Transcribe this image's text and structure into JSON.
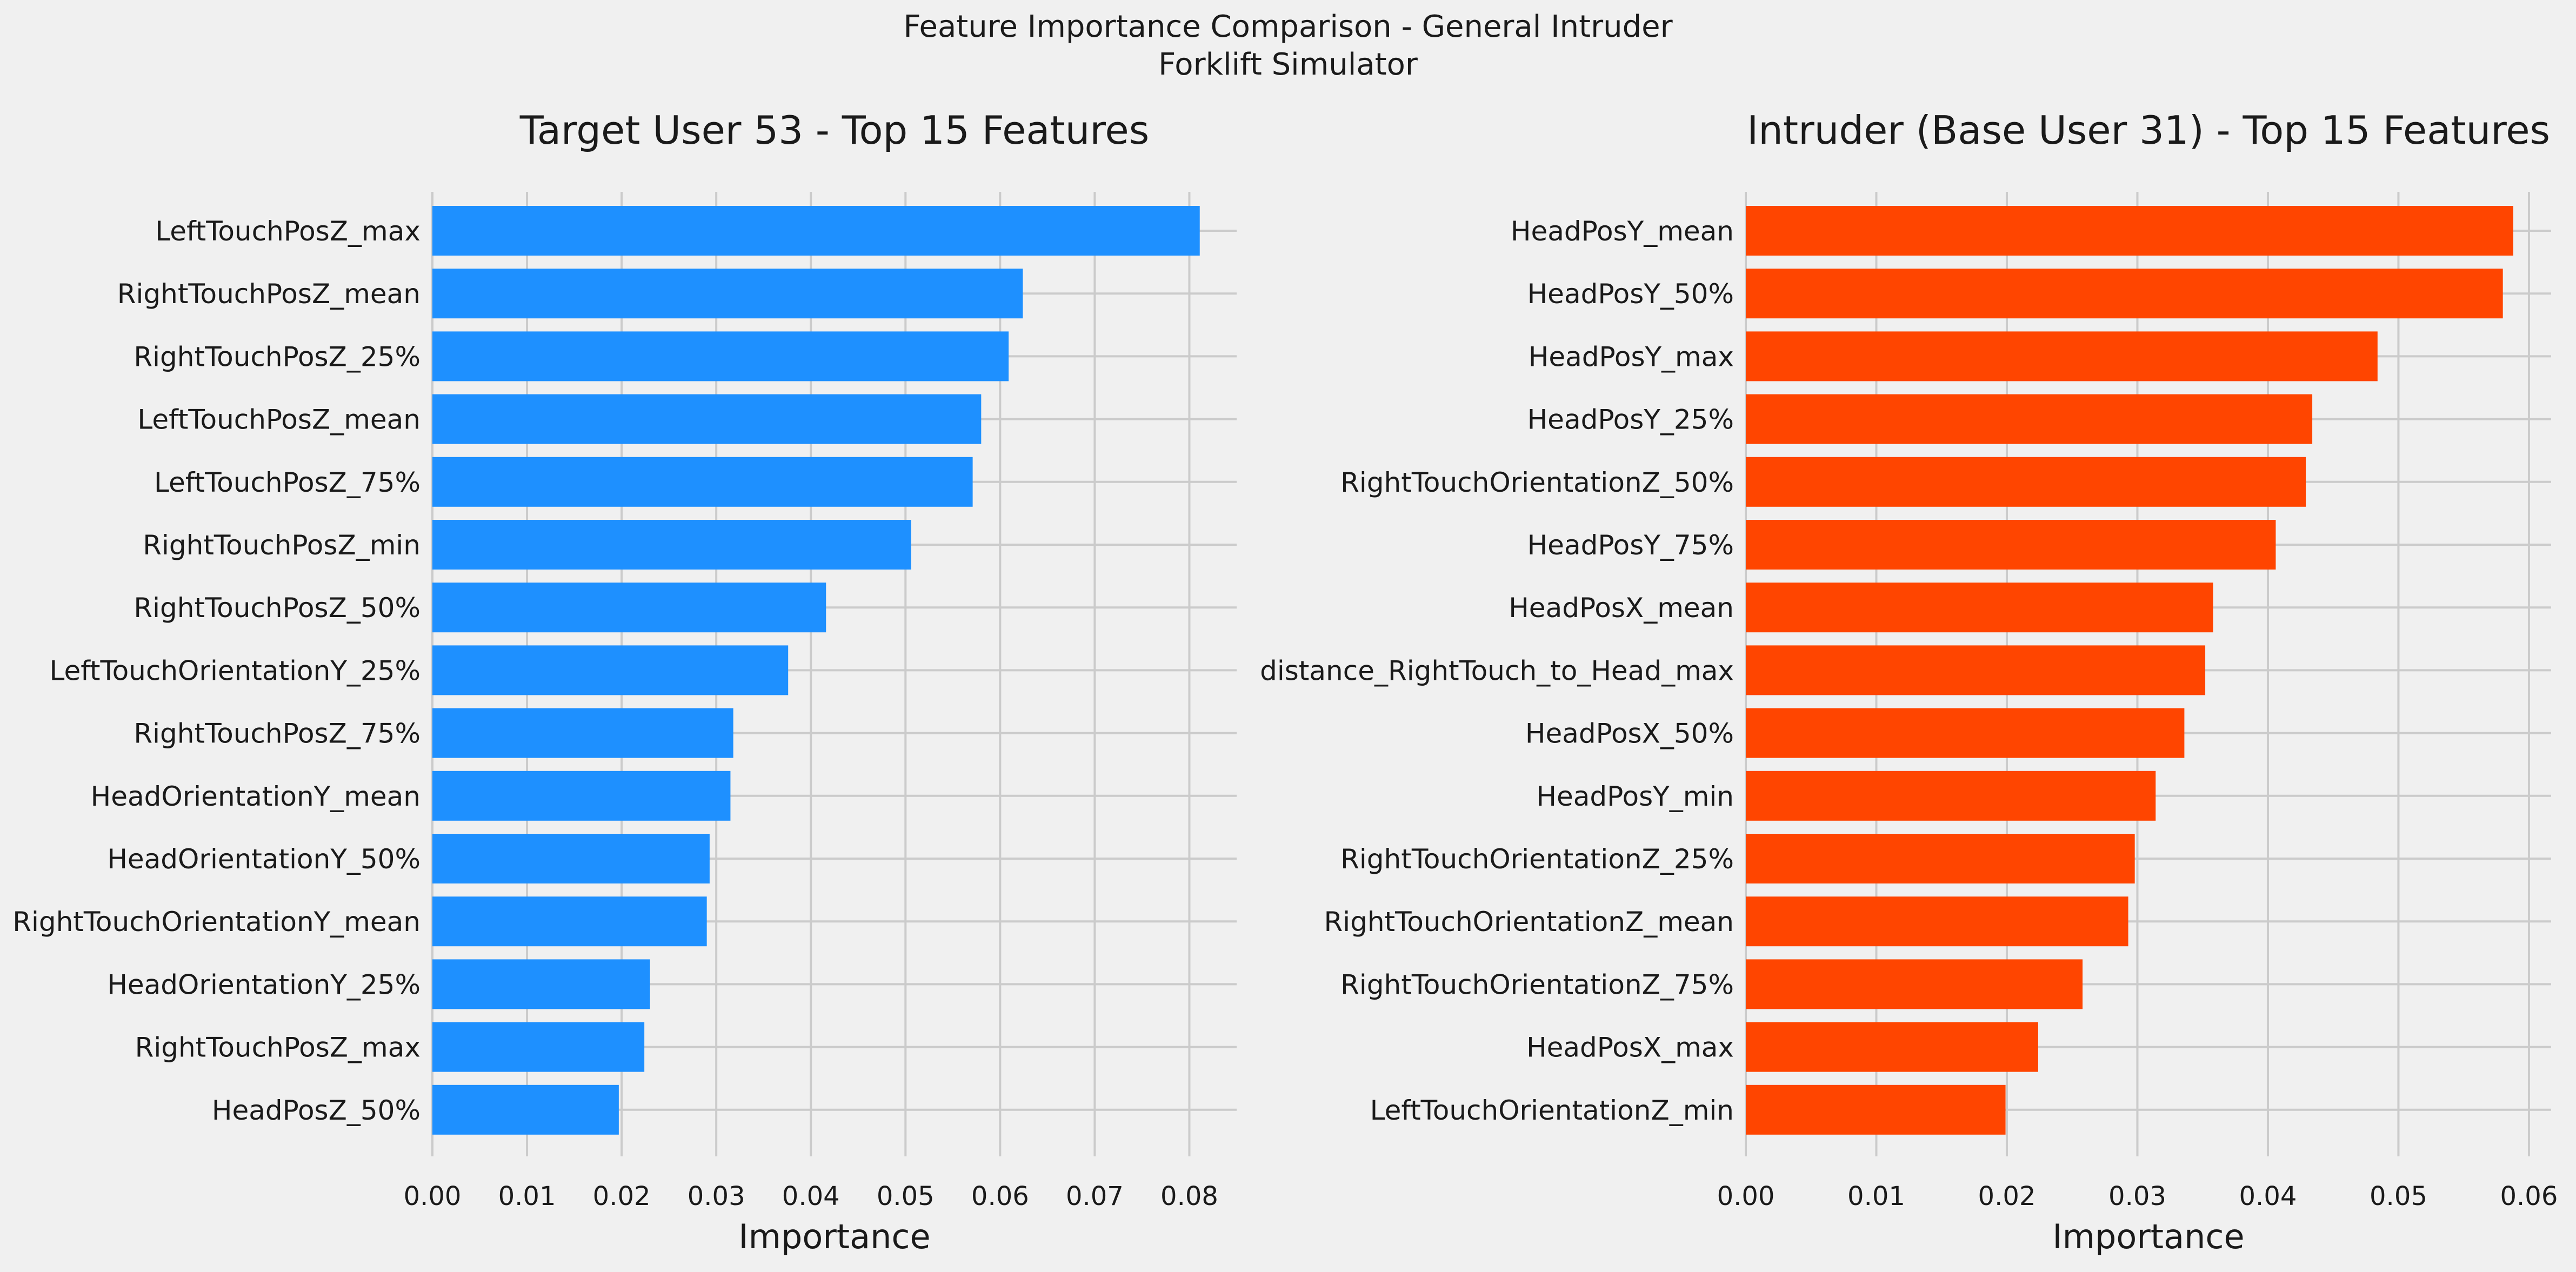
{
  "figure": {
    "suptitle_line1": "Feature Importance Comparison - General Intruder",
    "suptitle_line2": "Forklift Simulator",
    "background": "#f0f0f0",
    "grid_color": "#cbcbcb"
  },
  "chart_data": [
    {
      "type": "bar",
      "orientation": "horizontal",
      "title": "Target User 53 - Top 15 Features",
      "xlabel": "Importance",
      "ylabel": "",
      "grid": true,
      "color": "#1e90ff",
      "xlim": [
        0,
        0.085
      ],
      "xticks": [
        0.0,
        0.01,
        0.02,
        0.03,
        0.04,
        0.05,
        0.06,
        0.07,
        0.08
      ],
      "xtick_labels": [
        "0.00",
        "0.01",
        "0.02",
        "0.03",
        "0.04",
        "0.05",
        "0.06",
        "0.07",
        "0.08"
      ],
      "categories": [
        "LeftTouchPosZ_max",
        "RightTouchPosZ_mean",
        "RightTouchPosZ_25%",
        "LeftTouchPosZ_mean",
        "LeftTouchPosZ_75%",
        "RightTouchPosZ_min",
        "RightTouchPosZ_50%",
        "LeftTouchOrientationY_25%",
        "RightTouchPosZ_75%",
        "HeadOrientationY_mean",
        "HeadOrientationY_50%",
        "RightTouchOrientationY_mean",
        "HeadOrientationY_25%",
        "RightTouchPosZ_max",
        "HeadPosZ_50%"
      ],
      "values": [
        0.0811,
        0.0624,
        0.0609,
        0.058,
        0.0571,
        0.0506,
        0.0416,
        0.0376,
        0.0318,
        0.0315,
        0.0293,
        0.029,
        0.023,
        0.0224,
        0.0197
      ]
    },
    {
      "type": "bar",
      "orientation": "horizontal",
      "title": "Intruder (Base User 31) - Top 15 Features",
      "xlabel": "Importance",
      "ylabel": "",
      "grid": true,
      "color": "#ff4500",
      "xlim": [
        0,
        0.0617
      ],
      "xticks": [
        0.0,
        0.01,
        0.02,
        0.03,
        0.04,
        0.05,
        0.06
      ],
      "xtick_labels": [
        "0.00",
        "0.01",
        "0.02",
        "0.03",
        "0.04",
        "0.05",
        "0.06"
      ],
      "categories": [
        "HeadPosY_mean",
        "HeadPosY_50%",
        "HeadPosY_max",
        "HeadPosY_25%",
        "RightTouchOrientationZ_50%",
        "HeadPosY_75%",
        "HeadPosX_mean",
        "distance_RightTouch_to_Head_max",
        "HeadPosX_50%",
        "HeadPosY_min",
        "RightTouchOrientationZ_25%",
        "RightTouchOrientationZ_mean",
        "RightTouchOrientationZ_75%",
        "HeadPosX_max",
        "LeftTouchOrientationZ_min"
      ],
      "values": [
        0.0588,
        0.058,
        0.0484,
        0.0434,
        0.0429,
        0.0406,
        0.0358,
        0.0352,
        0.0336,
        0.0314,
        0.0298,
        0.0293,
        0.0258,
        0.0224,
        0.0199
      ]
    }
  ]
}
